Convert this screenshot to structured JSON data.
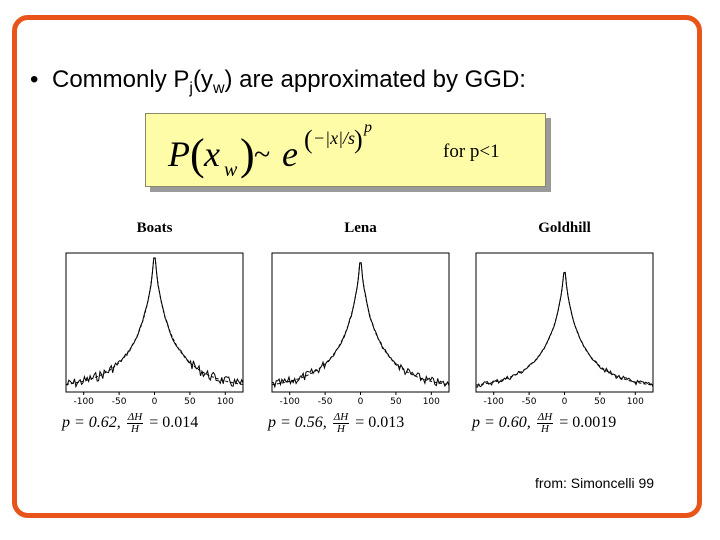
{
  "slide": {
    "bullet_symbol": "•",
    "bullet_parts": {
      "prefix": "Commonly P",
      "sub1": "j",
      "mid": "(y",
      "sub2": "w",
      "suffix": ") are approximated by GGD:"
    },
    "formula": {
      "lhs_P": "P",
      "lhs_x": "x",
      "lhs_sub": "w",
      "tilde": "~",
      "base": "e",
      "exp_inner": "−|x|/s",
      "exp_power": "p"
    },
    "formula_note": "for p<1",
    "source": "from: Simoncelli 99",
    "border_color": "#e8541a",
    "box_color": "#fffca8"
  },
  "plots": [
    {
      "title": "Boats",
      "x_ticks": [
        "-100",
        "-50",
        "0",
        "50",
        "100"
      ],
      "caption_p": "p = 0.62,",
      "frac_num": "ΔH",
      "frac_den": "H",
      "caption_val": "= 0.014"
    },
    {
      "title": "Lena",
      "x_ticks": [
        "-100",
        "-50",
        "0",
        "50",
        "100"
      ],
      "caption_p": "p = 0.56,",
      "frac_num": "ΔH",
      "frac_den": "H",
      "caption_val": "= 0.013"
    },
    {
      "title": "Goldhill",
      "x_ticks": [
        "-100",
        "-50",
        "0",
        "50",
        "100"
      ],
      "caption_p": "p = 0.60,",
      "frac_num": "ΔH",
      "frac_den": "H",
      "caption_val": "= 0.0019"
    }
  ]
}
